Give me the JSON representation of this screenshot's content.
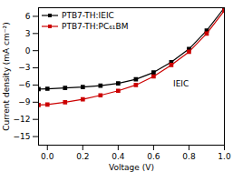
{
  "chart_data": {
    "type": "line",
    "xlabel": "Voltage (V)",
    "ylabel": "Current density (mA cm⁻²)",
    "xlim": [
      -0.05,
      1.0
    ],
    "ylim": [
      -16.5,
      7.5
    ],
    "xticks": [
      {
        "value": 0.0,
        "label": "0.0"
      },
      0.2,
      0.4,
      0.6,
      0.8,
      {
        "value": 1.0,
        "label": "1.0"
      }
    ],
    "yticks": [
      -15,
      -12,
      -9,
      -6,
      -3,
      0,
      3,
      6
    ],
    "x": [
      -0.05,
      0.0,
      0.1,
      0.2,
      0.3,
      0.4,
      0.5,
      0.6,
      0.7,
      0.8,
      0.9,
      1.0
    ],
    "series": [
      {
        "name": "PTB7-TH:IEIC",
        "color": "#000000",
        "marker": "square",
        "values": [
          -6.7,
          -6.65,
          -6.5,
          -6.35,
          -6.1,
          -5.7,
          -5.0,
          -3.8,
          -2.0,
          0.3,
          3.5,
          7.5
        ]
      },
      {
        "name": "PTB7-TH:PC₆₁BM",
        "color": "#cc0000",
        "marker": "square",
        "values": [
          -9.5,
          -9.4,
          -9.0,
          -8.5,
          -7.8,
          -7.0,
          -6.0,
          -4.5,
          -2.5,
          -0.2,
          3.0,
          7.0
        ]
      }
    ],
    "annotations": [
      {
        "text": "IEIC",
        "x": 0.755,
        "y": -5.3
      }
    ],
    "legend": "upper left",
    "grid": false
  }
}
